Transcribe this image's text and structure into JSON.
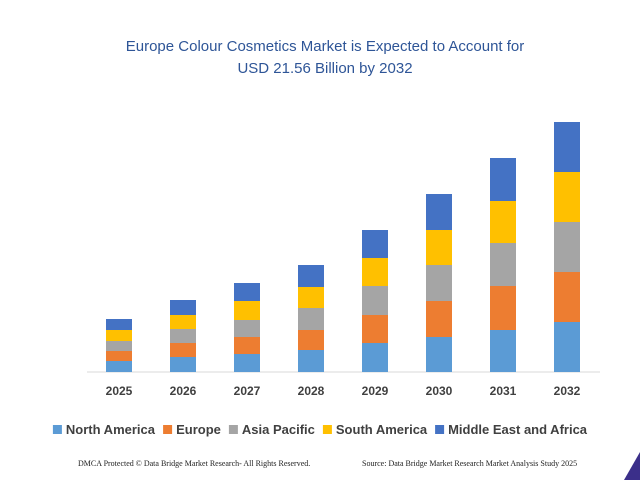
{
  "footer": {
    "left": "DMCA Protected © Data Bridge Market Research- All Rights Reserved.",
    "right": "Source: Data Bridge Market Research Market Analysis Study 2025"
  },
  "chart_data": {
    "type": "bar",
    "stacked": true,
    "title": "Europe Colour Cosmetics Market is Expected to Account for USD 21.56 Billion by 2032",
    "title_lines": [
      "Europe Colour Cosmetics Market is Expected to Account for",
      "USD 21.56 Billion by 2032"
    ],
    "categories": [
      "2025",
      "2026",
      "2027",
      "2028",
      "2029",
      "2030",
      "2031",
      "2032"
    ],
    "series": [
      {
        "name": "North America",
        "color": "#5b9bd5",
        "values": [
          11,
          15,
          18,
          22,
          29,
          35,
          42,
          50
        ]
      },
      {
        "name": "Europe",
        "color": "#ed7d31",
        "values": [
          10,
          14,
          17,
          20,
          28,
          36,
          44,
          50
        ]
      },
      {
        "name": "Asia Pacific",
        "color": "#a5a5a5",
        "values": [
          10,
          14,
          17,
          22,
          29,
          36,
          43,
          50
        ]
      },
      {
        "name": "South America",
        "color": "#ffc000",
        "values": [
          11,
          14,
          19,
          21,
          28,
          35,
          42,
          50
        ]
      },
      {
        "name": "Middle East and Africa",
        "color": "#4472c4",
        "values": [
          11,
          15,
          18,
          22,
          28,
          36,
          43,
          50
        ]
      }
    ],
    "ylim": [
      0,
      250
    ],
    "xlabel": "",
    "ylabel": "",
    "grid": false,
    "legend_position": "bottom"
  }
}
